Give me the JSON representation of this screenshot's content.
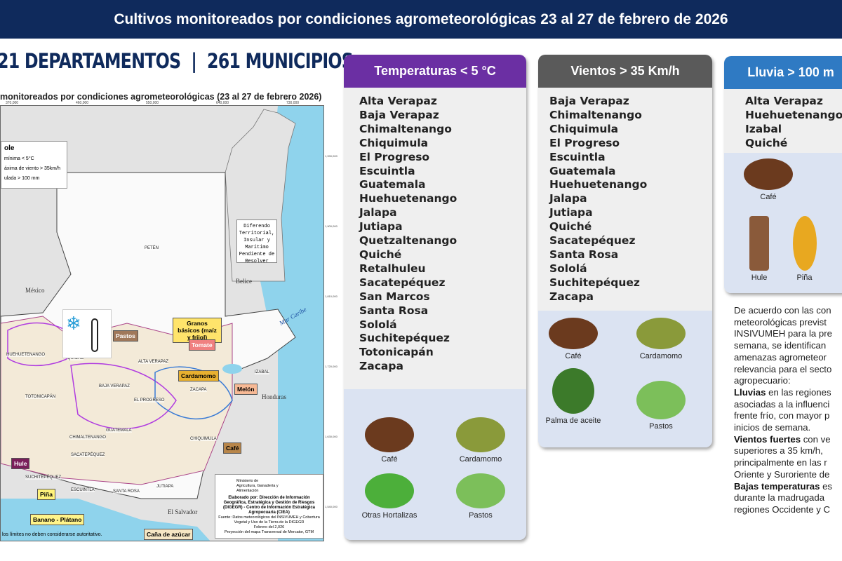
{
  "header": {
    "title": "Cultivos monitoreados por condiciones agrometeorológicas 23 al 27 de febrero de 2026"
  },
  "counts": "21 DEPARTAMENTOS  |  261 MUNICIPIOS",
  "map": {
    "title": "monitoreados por condiciones agrometeorológicas (23 al 27 de febrero 2026)",
    "x_ticks": [
      "370,000",
      "460,000",
      "550,000",
      "640,000",
      "730,000"
    ],
    "y_ticks": [
      "1,990,000",
      "1,900,000",
      "1,810,000",
      "1,720,000",
      "1,630,000",
      "1,540,000"
    ],
    "legend": {
      "title": "ole",
      "items": [
        "mínima < 5°C",
        "áxima de viento > 35km/h",
        "ulada > 100 mm"
      ]
    },
    "countries": {
      "mexico": "México",
      "belice": "Belice",
      "honduras": "Honduras",
      "salvador": "El Salvador",
      "caribe": "Mar Caribe",
      "lago": "Lago de Izabal"
    },
    "diferendo": "Diferendo Territorial, Insular y Marítimo Pendiente de Resolver",
    "departments": [
      "PETÉN",
      "HUEHUETENANGO",
      "QUICHÉ",
      "ALTA VERAPAZ",
      "IZABAL",
      "BAJA VERAPAZ",
      "TOTONICAPÁN",
      "EL PROGRESO",
      "ZACAPA",
      "CHIMALTENANGO",
      "GUATEMALA",
      "CHIQUIMULA",
      "SACATEPÉQUEZ",
      "SUCHITEPÉQUEZ",
      "ESCUINTLA",
      "SANTA ROSA",
      "JUTIAPA"
    ],
    "crop_tags": [
      {
        "label": "Pastos",
        "color": "#a0785a"
      },
      {
        "label": "Granos básicos (maíz y frijol)",
        "color": "#ffe46b"
      },
      {
        "label": "Tomate",
        "color": "#f08080"
      },
      {
        "label": "Cardamomo",
        "color": "#e8b030"
      },
      {
        "label": "Melón",
        "color": "#f7b995"
      },
      {
        "label": "Café",
        "color": "#b8864a"
      },
      {
        "label": "Hule",
        "color": "#7a1f5a"
      },
      {
        "label": "Piña",
        "color": "#fff27a"
      },
      {
        "label": "Banano - Plátano",
        "color": "#fff48a"
      },
      {
        "label": "Caña de azúcar",
        "color": "#f5e6c4"
      }
    ],
    "credits": {
      "org": "Ministerio de Agricultura, Ganadería y Alimentación",
      "elaborado": "Elaborado por: Dirección de Información Geográfica, Estratégica y Gestión de Riesgos (DIGEGR) - Centro de Información Estratégica Agropecuaria (CIEA)",
      "fuente": "Fuente: Datos meteorológicos del INSIVUMEH y Cobertura Vegetal y Uso de la Tierra de la DIGEGR",
      "fecha": "Febrero del 2,026",
      "proyeccion": "Proyección del mapa Transversal de Mercator, GTM"
    },
    "disclaimer": "los límites no deben considerarse autoritativo."
  },
  "cards": [
    {
      "title": "Temperaturas < 5 °C",
      "color": "#6b2fa3",
      "items": [
        "Alta Verapaz",
        "Baja Verapaz",
        "Chimaltenango",
        "Chiquimula",
        "El Progreso",
        "Escuintla",
        "Guatemala",
        "Huehuetenango",
        "Jalapa",
        "Jutiapa",
        "Quetzaltenango",
        "Quiché",
        "Retalhuleu",
        "Sacatepéquez",
        "San Marcos",
        "Santa Rosa",
        "Sololá",
        "Suchitepéquez",
        "Totonicapán",
        "Zacapa"
      ],
      "crops": [
        "Café",
        "Cardamomo",
        "Otras Hortalizas",
        "Pastos"
      ]
    },
    {
      "title": "Vientos > 35 Km/h",
      "color": "#5a5a5a",
      "items": [
        "Baja Verapaz",
        "Chimaltenango",
        "Chiquimula",
        "El Progreso",
        "Escuintla",
        "Guatemala",
        "Huehuetenango",
        "Jalapa",
        "Jutiapa",
        "Quiché",
        "Sacatepéquez",
        "Santa Rosa",
        "Sololá",
        "Suchitepéquez",
        "Zacapa"
      ],
      "crops": [
        "Café",
        "Cardamomo",
        "Palma de aceite",
        "Pastos"
      ]
    },
    {
      "title": "Lluvia > 100 m",
      "color": "#2f7ac3",
      "items": [
        "Alta Verapaz",
        "Huehuetenango",
        "Izabal",
        "Quiché"
      ],
      "crops": [
        "Café",
        "Hule",
        "Piña"
      ]
    }
  ],
  "paragraph": {
    "intro": "De acuerdo con las con meteorológicas previst INSIVUMEH para la pre semana, se identifican amenazas agrometeor relevancia para el secto agropecuario:",
    "l1b": "Lluvias",
    "l1": " en las regiones asociadas a la influenci frente frío, con mayor p inicios de semana.",
    "l2b": "Vientos fuertes",
    "l2": " con ve superiores a 35 km/h, principalmente en las r Oriente y Suroriente de",
    "l3b": "Bajas temperaturas",
    "l3": " es durante la madrugada regiones Occidente y C"
  }
}
